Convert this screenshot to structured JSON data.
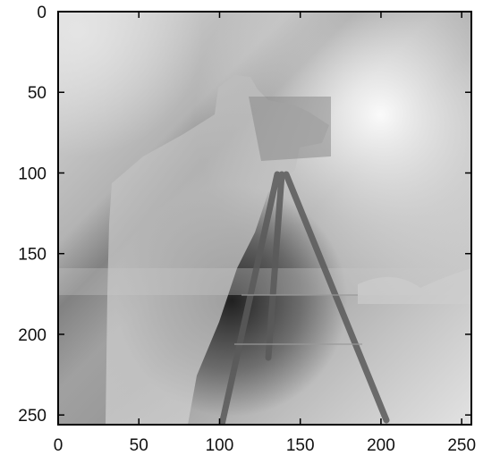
{
  "chart_data": {
    "type": "heatmap",
    "title": "",
    "xlabel": "",
    "ylabel": "",
    "colormap": "grayscale",
    "grid": false,
    "legend": "none",
    "xlim": [
      0,
      256
    ],
    "ylim": [
      256,
      0
    ],
    "x_ticks": [
      0,
      50,
      100,
      150,
      200,
      250
    ],
    "y_ticks": [
      0,
      50,
      100,
      150,
      200,
      250
    ],
    "x_tick_labels": [
      "0",
      "50",
      "100",
      "150",
      "200",
      "250"
    ],
    "y_tick_labels": [
      "0",
      "50",
      "100",
      "150",
      "200",
      "250"
    ],
    "image_size": [
      256,
      256
    ],
    "content": "grayscale photograph (cameraman with tripod) with smooth illumination gradient"
  }
}
